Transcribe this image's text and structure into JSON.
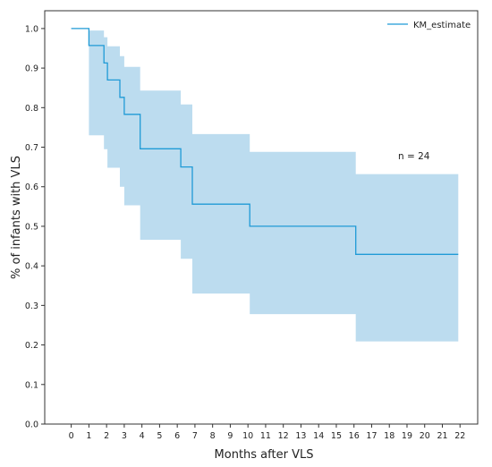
{
  "chart_data": {
    "type": "line",
    "title": "",
    "xlabel": "Months after VLS",
    "ylabel": "% of infants with VLS",
    "xlim": [
      -1.5,
      23
    ],
    "ylim": [
      0,
      1.045
    ],
    "x_ticks": [
      "0",
      "1",
      "2",
      "3",
      "4",
      "5",
      "6",
      "7",
      "8",
      "9",
      "10",
      "11",
      "12",
      "13",
      "14",
      "15",
      "16",
      "17",
      "18",
      "19",
      "20",
      "21",
      "22"
    ],
    "y_ticks": [
      "0.0",
      "0.1",
      "0.2",
      "0.3",
      "0.4",
      "0.5",
      "0.6",
      "0.7",
      "0.8",
      "0.9",
      "1.0"
    ],
    "grid": false,
    "legend_position": "top-right",
    "annotation": "n = 24",
    "colors": {
      "line": "#1f9ad6",
      "band": "#bcdcef",
      "axis": "#333333"
    },
    "series": [
      {
        "name": "KM_estimate",
        "step": "post",
        "x": [
          0,
          1.0,
          1.85,
          2.05,
          2.75,
          3.0,
          3.9,
          6.2,
          6.85,
          10.1,
          16.1,
          21.9
        ],
        "y": [
          1.0,
          0.957,
          0.913,
          0.87,
          0.826,
          0.783,
          0.696,
          0.65,
          0.556,
          0.5,
          0.429,
          0.429
        ],
        "ci_lower": [
          1.0,
          0.73,
          0.695,
          0.648,
          0.6,
          0.553,
          0.466,
          0.418,
          0.33,
          0.278,
          0.209,
          0.209
        ],
        "ci_upper": [
          1.0,
          0.995,
          0.978,
          0.955,
          0.93,
          0.903,
          0.843,
          0.808,
          0.733,
          0.688,
          0.632,
          0.632
        ]
      }
    ]
  }
}
